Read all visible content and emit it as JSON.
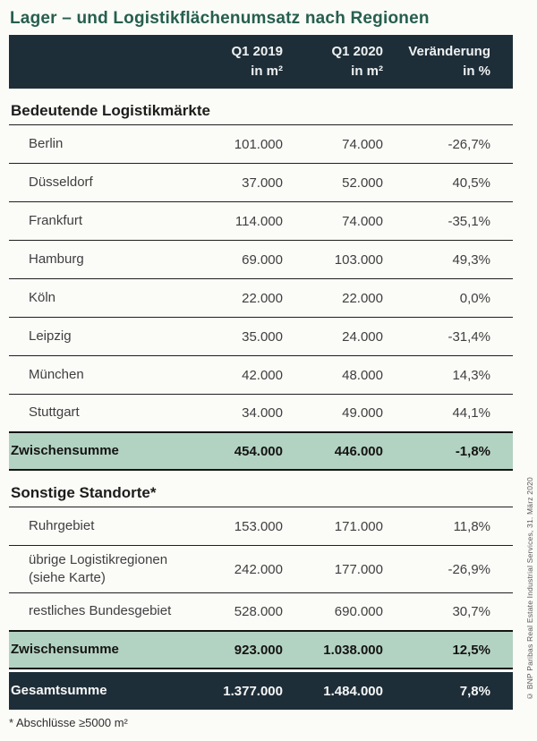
{
  "colors": {
    "header_bg": "#1e2e38",
    "subtotal_bg": "#b3d3c2",
    "total_bg": "#1e2e38",
    "title_green": "#265f4e",
    "page_bg": "#fbfbf8"
  },
  "chart_data": {
    "type": "table",
    "title": "Lager – und Logistikflächenumsatz nach Regionen",
    "column_headers": [
      {
        "line1": "Q1 2019",
        "line2": "in m²"
      },
      {
        "line1": "Q1 2020",
        "line2": "in m²"
      },
      {
        "line1": "Veränderung",
        "line2": "in %"
      }
    ],
    "sections": [
      {
        "title": "Bedeutende Logistikmärkte",
        "rows": [
          {
            "name": "Berlin",
            "q1_2019": "101.000",
            "q1_2020": "74.000",
            "change": "-26,7%"
          },
          {
            "name": "Düsseldorf",
            "q1_2019": "37.000",
            "q1_2020": "52.000",
            "change": "40,5%"
          },
          {
            "name": "Frankfurt",
            "q1_2019": "114.000",
            "q1_2020": "74.000",
            "change": "-35,1%"
          },
          {
            "name": "Hamburg",
            "q1_2019": "69.000",
            "q1_2020": "103.000",
            "change": "49,3%"
          },
          {
            "name": "Köln",
            "q1_2019": "22.000",
            "q1_2020": "22.000",
            "change": "0,0%"
          },
          {
            "name": "Leipzig",
            "q1_2019": "35.000",
            "q1_2020": "24.000",
            "change": "-31,4%"
          },
          {
            "name": "München",
            "q1_2019": "42.000",
            "q1_2020": "48.000",
            "change": "14,3%"
          },
          {
            "name": "Stuttgart",
            "q1_2019": "34.000",
            "q1_2020": "49.000",
            "change": "44,1%"
          }
        ],
        "subtotal": {
          "name": "Zwischensumme",
          "q1_2019": "454.000",
          "q1_2020": "446.000",
          "change": "-1,8%"
        }
      },
      {
        "title": "Sonstige Standorte*",
        "rows": [
          {
            "name": "Ruhrgebiet",
            "q1_2019": "153.000",
            "q1_2020": "171.000",
            "change": "11,8%"
          },
          {
            "name": "übrige Logistikregionen\n(siehe Karte)",
            "q1_2019": "242.000",
            "q1_2020": "177.000",
            "change": "-26,9%"
          },
          {
            "name": "restliches Bundesgebiet",
            "q1_2019": "528.000",
            "q1_2020": "690.000",
            "change": "30,7%"
          }
        ],
        "subtotal": {
          "name": "Zwischensumme",
          "q1_2019": "923.000",
          "q1_2020": "1.038.000",
          "change": "12,5%"
        }
      }
    ],
    "total": {
      "name": "Gesamtsumme",
      "q1_2019": "1.377.000",
      "q1_2020": "1.484.000",
      "change": "7,8%"
    },
    "footnote": "* Abschlüsse ≥5000 m²",
    "copyright": "© BNP Paribas Real Estate Industrial Services, 31. März 2020"
  }
}
